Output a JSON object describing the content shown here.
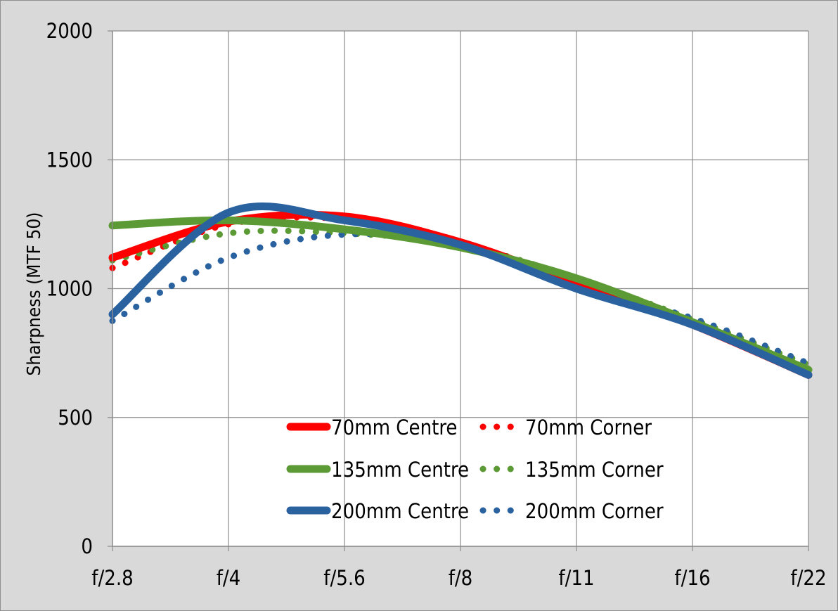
{
  "chart_data": {
    "type": "line",
    "title": "",
    "xlabel": "",
    "ylabel": "Sharpness (MTF 50)",
    "categories": [
      "f/2.8",
      "f/4",
      "f/5.6",
      "f/8",
      "f/11",
      "f/16",
      "f/22"
    ],
    "ylim": [
      0,
      2000
    ],
    "yticks": [
      "0",
      "500",
      "1000",
      "1500",
      "2000"
    ],
    "grid": true,
    "legend_position": "bottom-center",
    "series": [
      {
        "name": "70mm Centre",
        "style": "solid",
        "color": "#ff0000",
        "values": [
          1120,
          1260,
          1280,
          1180,
          1020,
          860,
          665
        ]
      },
      {
        "name": "70mm Corner",
        "style": "dotted",
        "color": "#ff0000",
        "values": [
          1080,
          1250,
          1270,
          1180,
          1020,
          860,
          670
        ]
      },
      {
        "name": "135mm Centre",
        "style": "solid",
        "color": "#5b9a34",
        "values": [
          1245,
          1265,
          1230,
          1160,
          1040,
          870,
          685
        ]
      },
      {
        "name": "135mm Corner",
        "style": "dotted",
        "color": "#5b9a34",
        "values": [
          1110,
          1215,
          1215,
          1170,
          1040,
          880,
          705
        ]
      },
      {
        "name": "200mm Centre",
        "style": "solid",
        "color": "#2a62a0",
        "values": [
          900,
          1295,
          1265,
          1170,
          1000,
          860,
          665
        ]
      },
      {
        "name": "200mm Corner",
        "style": "dotted",
        "color": "#2a62a0",
        "values": [
          875,
          1120,
          1210,
          1170,
          1010,
          885,
          710
        ]
      }
    ]
  }
}
